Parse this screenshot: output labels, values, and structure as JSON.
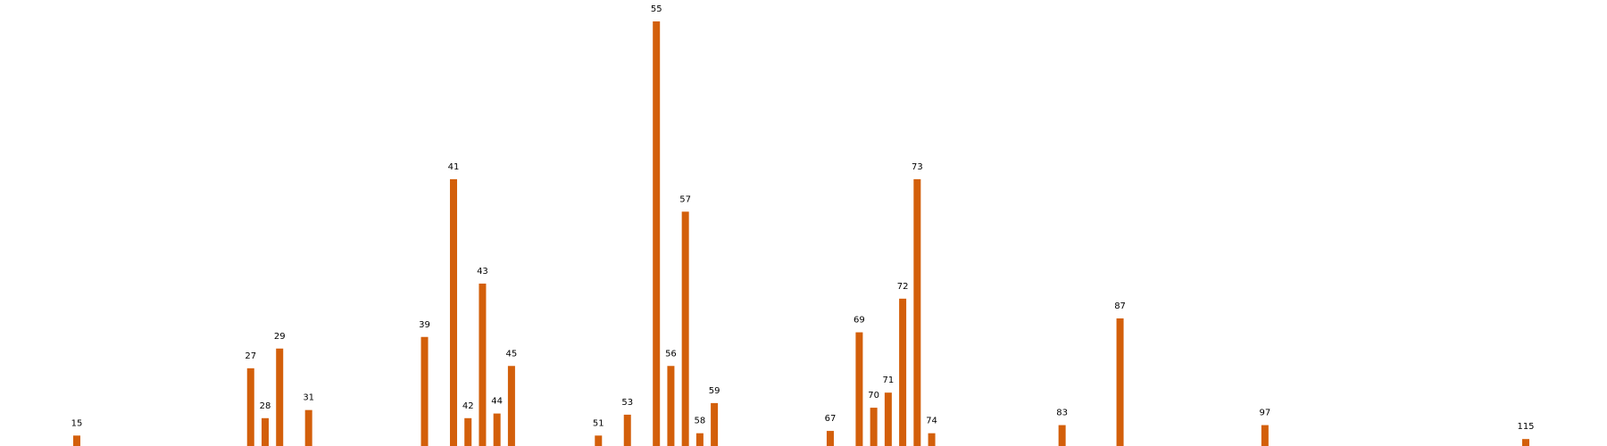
{
  "chart_data": {
    "type": "bar",
    "title": "",
    "xlabel": "",
    "ylabel": "",
    "grid": false,
    "axes_visible": false,
    "bar_color": "#d35f0a",
    "x": [
      15,
      27,
      28,
      29,
      31,
      39,
      41,
      42,
      43,
      44,
      45,
      51,
      53,
      55,
      56,
      57,
      58,
      59,
      67,
      69,
      70,
      71,
      72,
      73,
      74,
      83,
      87,
      97,
      115
    ],
    "values": [
      4.5,
      33.5,
      12,
      42,
      15.5,
      47,
      115,
      12,
      70,
      14,
      34.5,
      4.5,
      13.5,
      183,
      34.5,
      101,
      5.5,
      18.5,
      6.5,
      49,
      16.5,
      23,
      63.5,
      115,
      5.5,
      9,
      55,
      9,
      3
    ],
    "labels": [
      "15",
      "27",
      "28",
      "29",
      "31",
      "39",
      "41",
      "42",
      "43",
      "44",
      "45",
      "51",
      "53",
      "55",
      "56",
      "57",
      "58",
      "59",
      "67",
      "69",
      "70",
      "71",
      "72",
      "73",
      "74",
      "83",
      "87",
      "97",
      "115"
    ],
    "xlim": [
      10,
      117
    ],
    "ylim": [
      0,
      183
    ]
  }
}
